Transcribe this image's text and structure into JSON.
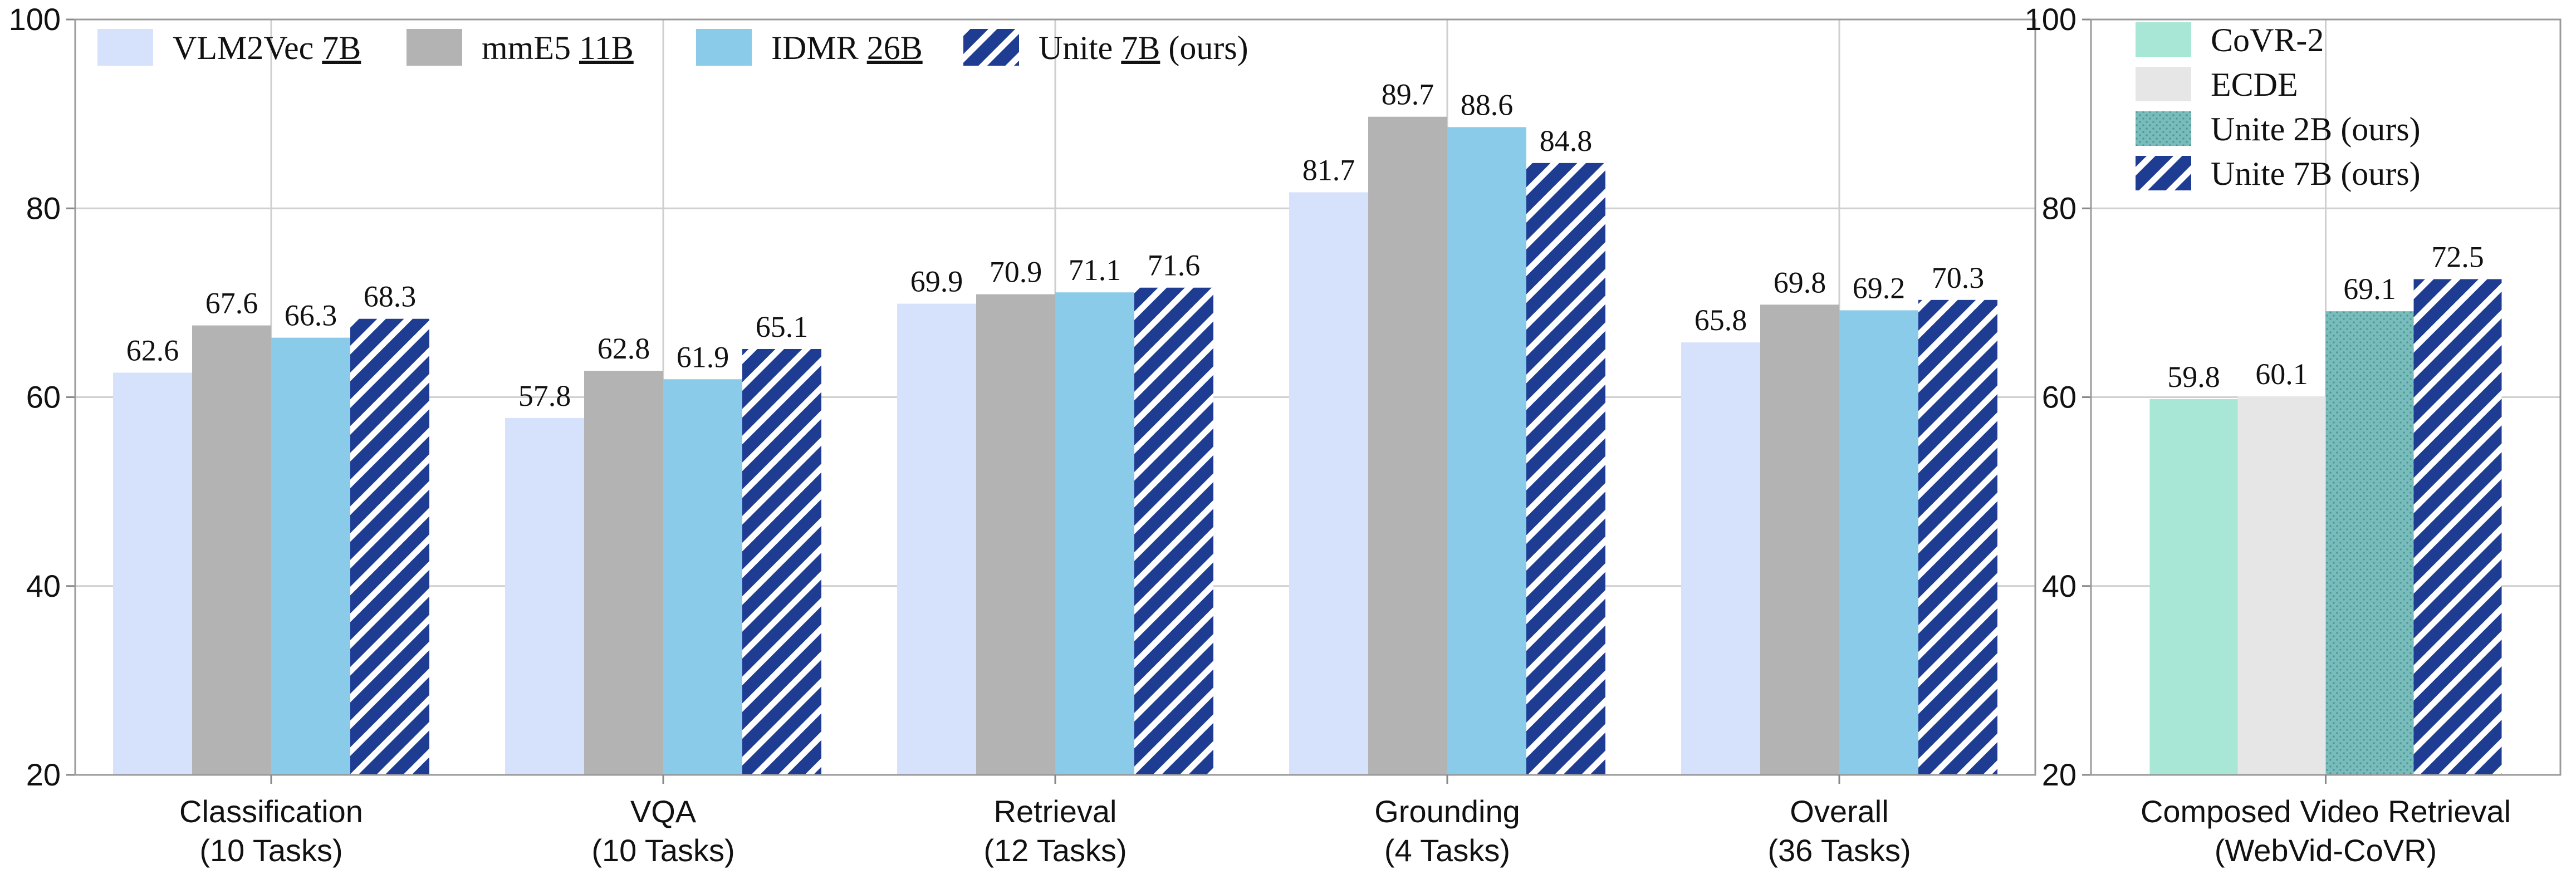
{
  "chart_data": [
    {
      "type": "bar",
      "title": "",
      "xlabel": "",
      "ylabel": "",
      "ylim": [
        20,
        100
      ],
      "yticks": [
        20,
        40,
        60,
        80,
        100
      ],
      "grid": true,
      "legend_position": "top-left",
      "categories": [
        {
          "line1": "Classification",
          "line2": "(10 Tasks)"
        },
        {
          "line1": "VQA",
          "line2": "(10 Tasks)"
        },
        {
          "line1": "Retrieval",
          "line2": "(12 Tasks)"
        },
        {
          "line1": "Grounding",
          "line2": "(4 Tasks)"
        },
        {
          "line1": "Overall",
          "line2": "(36 Tasks)"
        }
      ],
      "series": [
        {
          "name": "VLM2Vec",
          "size": "7B",
          "color": "#d6e2fb",
          "pattern": "solid",
          "values": [
            62.6,
            57.8,
            69.9,
            81.7,
            65.8
          ]
        },
        {
          "name": "mmE5",
          "size": "11B",
          "color": "#b3b3b3",
          "pattern": "solid",
          "values": [
            67.6,
            62.8,
            70.9,
            89.7,
            69.8
          ]
        },
        {
          "name": "IDMR",
          "size": "26B",
          "color": "#89cbe8",
          "pattern": "solid",
          "values": [
            66.3,
            61.9,
            71.1,
            88.6,
            69.2
          ]
        },
        {
          "name": "Unite",
          "size": "7B",
          "suffix": "(ours)",
          "color": "#1f3c93",
          "pattern": "hatch",
          "values": [
            68.3,
            65.1,
            71.6,
            84.8,
            70.3
          ]
        }
      ]
    },
    {
      "type": "bar",
      "title": "",
      "xlabel": "",
      "ylabel": "",
      "ylim": [
        20,
        100
      ],
      "yticks": [
        20,
        40,
        60,
        80,
        100
      ],
      "grid": true,
      "legend_position": "top-left",
      "categories": [
        {
          "line1": "Composed Video Retrieval",
          "line2": "(WebVid-CoVR)"
        }
      ],
      "series": [
        {
          "name": "CoVR-2",
          "color": "#a8e6d6",
          "pattern": "solid",
          "values": [
            59.8
          ]
        },
        {
          "name": "ECDE",
          "color": "#e6e6e6",
          "pattern": "solid",
          "values": [
            60.1
          ]
        },
        {
          "name": "Unite 2B (ours)",
          "color": "#7fbfbf",
          "pattern": "dots",
          "values": [
            69.1
          ]
        },
        {
          "name": "Unite 7B (ours)",
          "color": "#1f3c93",
          "pattern": "hatch",
          "values": [
            72.5
          ]
        }
      ]
    }
  ]
}
